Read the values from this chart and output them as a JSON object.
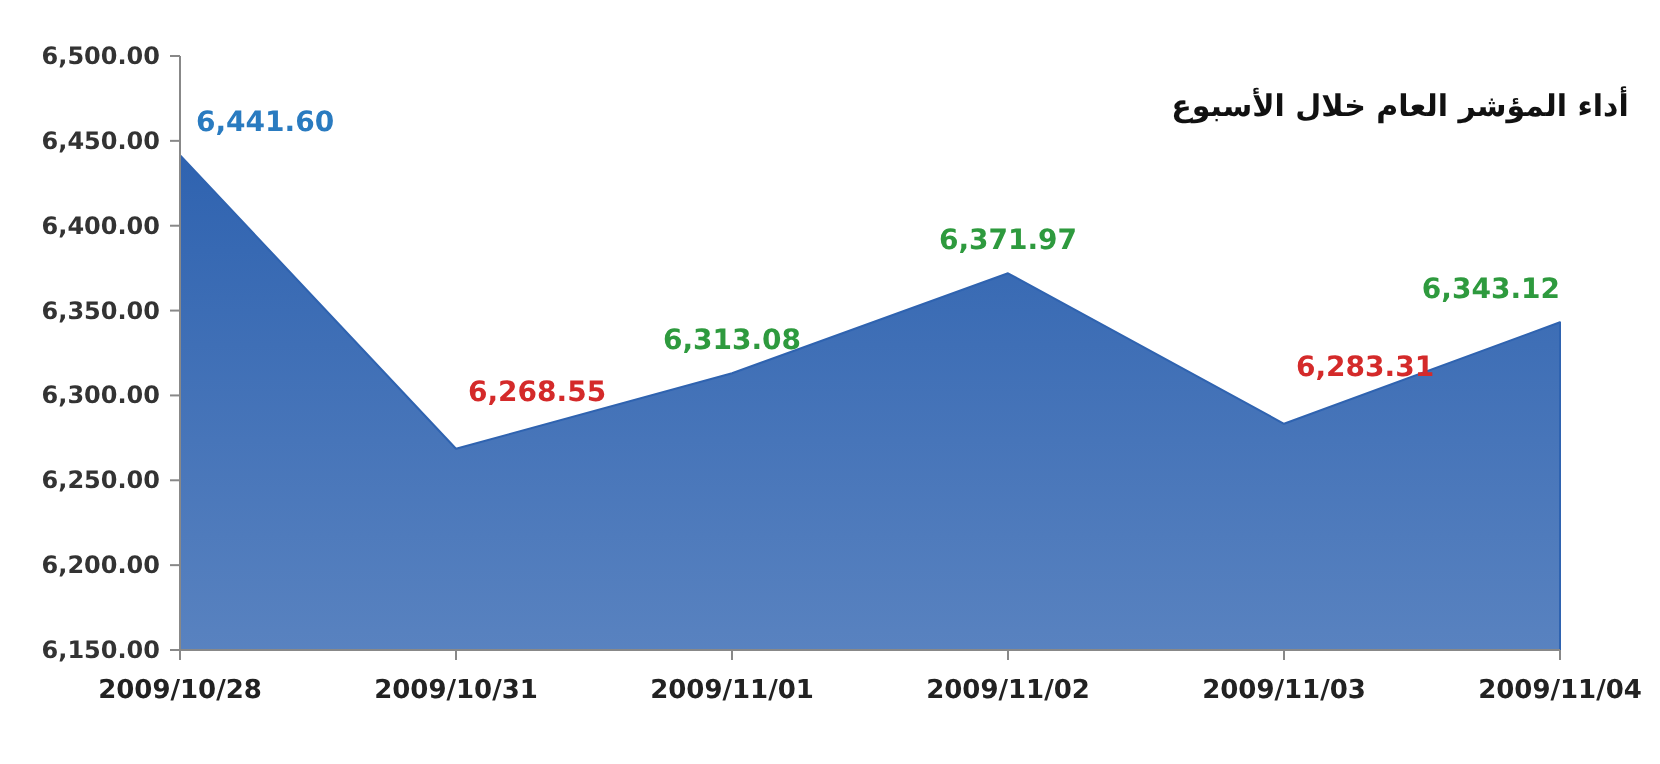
{
  "chart_data": {
    "type": "area",
    "title": "أداء المؤشر العام خلال الأسبوع",
    "categories": [
      "2009/10/28",
      "2009/10/31",
      "2009/11/01",
      "2009/11/02",
      "2009/11/03",
      "2009/11/04"
    ],
    "series": [
      {
        "color": "#2f63b0",
        "values": [
          6441.6,
          6268.55,
          6313.08,
          6371.97,
          6283.31,
          6343.12
        ],
        "value_labels": [
          "6,441.60",
          "6,268.55",
          "6,313.08",
          "6,371.97",
          "6,283.31",
          "6,343.12"
        ]
      }
    ],
    "colors": [
      "#2a7bc0",
      "#d42a2a",
      "#2e9a3e",
      "#2e9a3e",
      "#d42a2a",
      "#2e9a3e"
    ],
    "ylim": [
      6150,
      6500
    ],
    "yticks": [
      {
        "value": 6150,
        "label": "6,150.00"
      },
      {
        "value": 6200,
        "label": "6,200.00"
      },
      {
        "value": 6250,
        "label": "6,250.00"
      },
      {
        "value": 6300,
        "label": "6,300.00"
      },
      {
        "value": 6350,
        "label": "6,350.00"
      },
      {
        "value": 6400,
        "label": "6,400.00"
      },
      {
        "value": 6450,
        "label": "6,450.00"
      },
      {
        "value": 6500,
        "label": "6,500.00"
      }
    ],
    "grid": false
  }
}
